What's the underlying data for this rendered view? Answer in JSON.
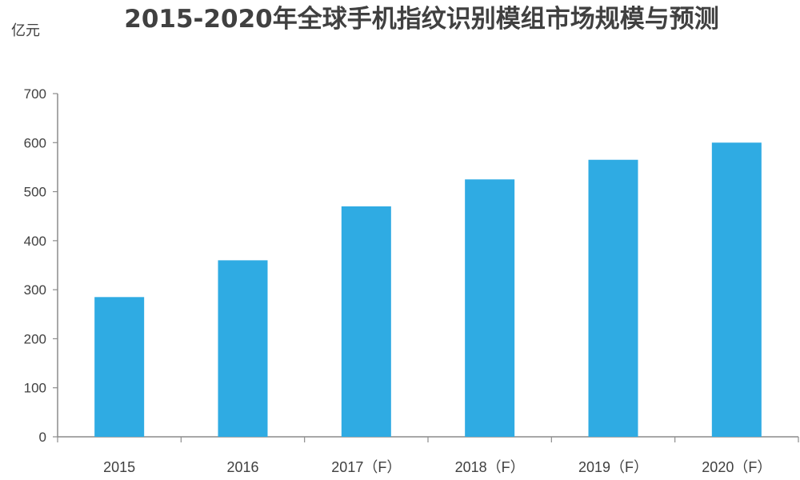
{
  "chart_data": {
    "type": "bar",
    "title": "2015-2020年全球手机指纹识别模组市场规模与预测",
    "ylabel": "亿元",
    "xlabel": "",
    "categories": [
      "2015",
      "2016",
      "2017（F）",
      "2018（F）",
      "2019（F）",
      "2020（F）"
    ],
    "values": [
      285,
      360,
      470,
      525,
      565,
      600
    ],
    "ylim": [
      0,
      700
    ],
    "yticks": [
      0,
      100,
      200,
      300,
      400,
      500,
      600,
      700
    ],
    "grid": false,
    "legend": "none",
    "bar_color": "#2fabe3"
  }
}
